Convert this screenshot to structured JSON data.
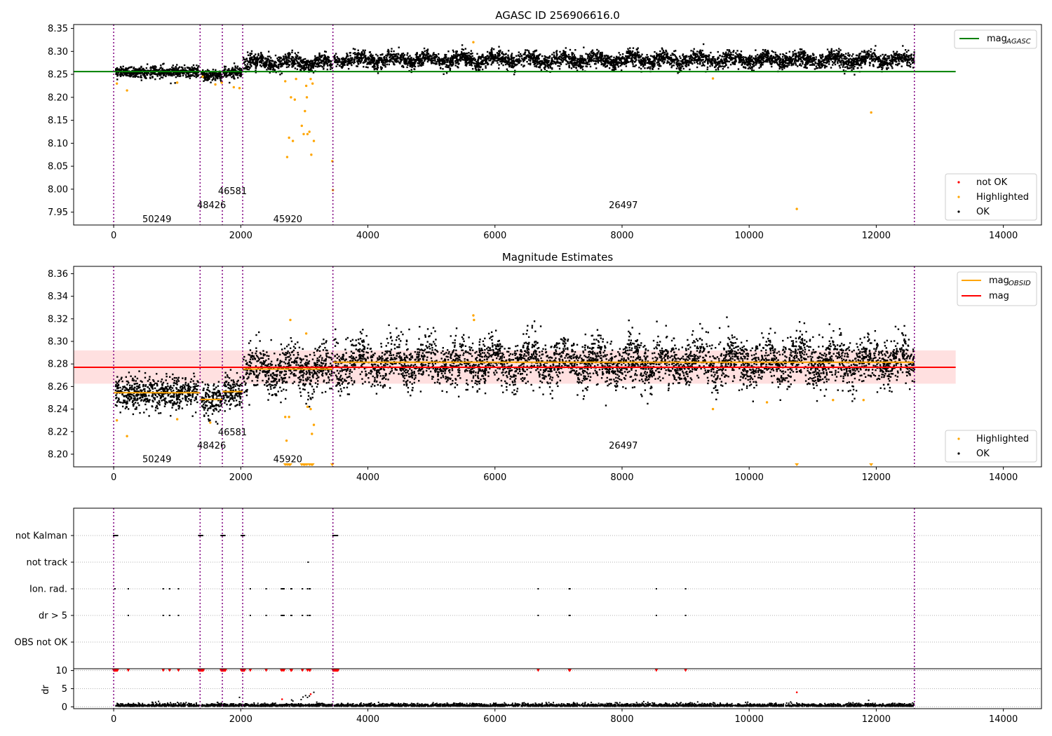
{
  "figure_title": "AGASC ID 256906616.0",
  "chart_data": [
    {
      "type": "scatter",
      "title": "AGASC ID 256906616.0",
      "xlabel": "",
      "ylabel": "",
      "xlim": [
        -630,
        14600
      ],
      "ylim": [
        7.922,
        8.3585
      ],
      "xticks": [
        0,
        2000,
        4000,
        6000,
        8000,
        10000,
        12000,
        14000
      ],
      "yticks": [
        7.95,
        8.0,
        8.05,
        8.1,
        8.15,
        8.2,
        8.25,
        8.3,
        8.35
      ],
      "ytick_decimals": 2,
      "obsid_boundaries": [
        0,
        1360,
        1710,
        2030,
        3450,
        12600
      ],
      "obsid_labels": [
        {
          "text": "50249",
          "x": 680,
          "y": 7.936
        },
        {
          "text": "48426",
          "x": 1540,
          "y": 7.966
        },
        {
          "text": "46581",
          "x": 1870,
          "y": 7.997
        },
        {
          "text": "45920",
          "x": 2740,
          "y": 7.936
        },
        {
          "text": "26497",
          "x": 8020,
          "y": 7.966
        }
      ],
      "segments": [
        {
          "x0": 30,
          "x1": 1340,
          "mean": 8.2555,
          "spread": 0.006
        },
        {
          "x0": 1380,
          "x1": 1700,
          "mean": 8.2475,
          "spread": 0.006
        },
        {
          "x0": 1720,
          "x1": 2020,
          "mean": 8.255,
          "spread": 0.006
        },
        {
          "x0": 2040,
          "x1": 3440,
          "mean": 8.2755,
          "spread": 0.008
        },
        {
          "x0": 3470,
          "x1": 12600,
          "mean": 8.2815,
          "spread": 0.008
        }
      ],
      "agasc_mag": {
        "value": 8.256,
        "x0": -630,
        "x1": 13250,
        "color": "#008000"
      },
      "series": [
        {
          "name": "not OK",
          "color": "#ff0000",
          "points": []
        },
        {
          "name": "Highlighted",
          "color": "#ffa500",
          "points": [
            [
              50,
              8.23
            ],
            [
              210,
              8.215
            ],
            [
              1000,
              8.232
            ],
            [
              1400,
              8.245
            ],
            [
              1600,
              8.228
            ],
            [
              1700,
              8.232
            ],
            [
              1890,
              8.222
            ],
            [
              1980,
              8.22
            ],
            [
              2700,
              8.235
            ],
            [
              2730,
              8.07
            ],
            [
              2760,
              8.112
            ],
            [
              2790,
              8.2
            ],
            [
              2820,
              8.105
            ],
            [
              2850,
              8.195
            ],
            [
              2870,
              8.24
            ],
            [
              2960,
              8.138
            ],
            [
              2990,
              8.12
            ],
            [
              3010,
              8.17
            ],
            [
              3030,
              8.225
            ],
            [
              3040,
              8.2
            ],
            [
              3050,
              8.12
            ],
            [
              3080,
              8.125
            ],
            [
              3100,
              8.24
            ],
            [
              3110,
              8.075
            ],
            [
              3130,
              8.23
            ],
            [
              3150,
              8.105
            ],
            [
              3440,
              8.061
            ],
            [
              3450,
              7.998
            ],
            [
              5660,
              8.32
            ],
            [
              10750,
              7.957
            ],
            [
              11920,
              8.167
            ],
            [
              9430,
              8.241
            ]
          ]
        },
        {
          "name": "OK",
          "color": "#000000",
          "points": []
        }
      ],
      "legends": [
        {
          "position": "top-right",
          "items": [
            {
              "label": "mag",
              "sub": "AGASC",
              "kind": "line",
              "color": "#008000"
            }
          ]
        },
        {
          "position": "bottom-right",
          "items": [
            {
              "label": "not OK",
              "kind": "dot",
              "color": "#ff0000"
            },
            {
              "label": "Highlighted",
              "kind": "dot",
              "color": "#ffa500"
            },
            {
              "label": "OK",
              "kind": "dot",
              "color": "#000000"
            }
          ]
        }
      ]
    },
    {
      "type": "scatter",
      "title": "Magnitude Estimates",
      "xlabel": "",
      "ylabel": "",
      "xlim": [
        -630,
        14600
      ],
      "ylim": [
        8.1888,
        8.3665
      ],
      "xticks": [
        0,
        2000,
        4000,
        6000,
        8000,
        10000,
        12000,
        14000
      ],
      "yticks": [
        8.2,
        8.22,
        8.24,
        8.26,
        8.28,
        8.3,
        8.32,
        8.34,
        8.36
      ],
      "ytick_decimals": 2,
      "obsid_boundaries": [
        0,
        1360,
        1710,
        2030,
        3450,
        12600
      ],
      "obsid_labels": [
        {
          "text": "50249",
          "x": 680,
          "y": 8.196
        },
        {
          "text": "48426",
          "x": 1540,
          "y": 8.208
        },
        {
          "text": "46581",
          "x": 1870,
          "y": 8.22
        },
        {
          "text": "45920",
          "x": 2740,
          "y": 8.196
        },
        {
          "text": "26497",
          "x": 8020,
          "y": 8.208
        }
      ],
      "segments": [
        {
          "x0": 30,
          "x1": 1340,
          "mean": 8.2545,
          "spread": 0.007
        },
        {
          "x0": 1380,
          "x1": 1700,
          "mean": 8.2485,
          "spread": 0.007
        },
        {
          "x0": 1720,
          "x1": 2020,
          "mean": 8.2555,
          "spread": 0.007
        },
        {
          "x0": 2040,
          "x1": 3440,
          "mean": 8.2755,
          "spread": 0.01
        },
        {
          "x0": 3470,
          "x1": 12600,
          "mean": 8.2815,
          "spread": 0.01
        }
      ],
      "obsid_mags": [
        {
          "x0": 0,
          "x1": 1360,
          "mag": 8.2545
        },
        {
          "x0": 1360,
          "x1": 1710,
          "mag": 8.2485
        },
        {
          "x0": 1710,
          "x1": 2030,
          "mag": 8.2555
        },
        {
          "x0": 2030,
          "x1": 3450,
          "mag": 8.2755
        },
        {
          "x0": 3450,
          "x1": 12600,
          "mag": 8.2815
        }
      ],
      "mag": {
        "value": 8.277,
        "band": [
          8.2625,
          8.292
        ],
        "x0": -630,
        "x1": 13250,
        "color": "#ff0000"
      },
      "series": [
        {
          "name": "Highlighted",
          "color": "#ffa500",
          "points": [
            [
              50,
              8.23
            ],
            [
              210,
              8.216
            ],
            [
              1000,
              8.231
            ],
            [
              1520,
              8.228
            ],
            [
              2700,
              8.233
            ],
            [
              2720,
              8.212
            ],
            [
              2760,
              8.233
            ],
            [
              2780,
              8.319
            ],
            [
              3030,
              8.307
            ],
            [
              3050,
              8.242
            ],
            [
              3100,
              8.24
            ],
            [
              3120,
              8.218
            ],
            [
              3150,
              8.226
            ],
            [
              5660,
              8.323
            ],
            [
              5670,
              8.319
            ],
            [
              9430,
              8.24
            ],
            [
              10280,
              8.246
            ],
            [
              11320,
              8.248
            ],
            [
              11800,
              8.248
            ]
          ]
        },
        {
          "name": "OK",
          "color": "#000000",
          "points": []
        }
      ],
      "below_range": [
        2700,
        2730,
        2760,
        2780,
        2960,
        2990,
        3010,
        3040,
        3080,
        3110,
        3130,
        3440,
        10750,
        11920
      ],
      "legends": [
        {
          "position": "top-right",
          "items": [
            {
              "label": "mag",
              "sub": "OBSID",
              "kind": "line",
              "color": "#ffa500"
            },
            {
              "label": "mag",
              "kind": "line",
              "color": "#ff0000"
            }
          ]
        },
        {
          "position": "bottom-right",
          "items": [
            {
              "label": "Highlighted",
              "kind": "dot",
              "color": "#ffa500"
            },
            {
              "label": "OK",
              "kind": "dot",
              "color": "#000000"
            }
          ]
        }
      ]
    },
    {
      "type": "scatter",
      "title": "",
      "xlim": [
        -630,
        14600
      ],
      "xticks": [
        0,
        2000,
        4000,
        6000,
        8000,
        10000,
        12000,
        14000
      ],
      "obsid_boundaries": [
        0,
        1360,
        1710,
        2030,
        3450,
        12600
      ],
      "flag_rows": [
        "not Kalman",
        "not track",
        "Ion. rad.",
        "dr > 5",
        "OBS not OK"
      ],
      "flags": {
        "not Kalman": [
          [
            0,
            60
          ],
          [
            1340,
            1410
          ],
          [
            1690,
            1760
          ],
          [
            2010,
            2060
          ],
          [
            3450,
            3530
          ]
        ],
        "not track": [
          3060
        ],
        "Ion. rad.": [
          20,
          230,
          780,
          880,
          1020,
          2150,
          2400,
          2640,
          2660,
          2680,
          2790,
          2800,
          2970,
          3050,
          3080,
          3090,
          6680,
          7170,
          7180,
          8540,
          9000
        ],
        "dr > 5": [
          230,
          780,
          880,
          1020,
          2150,
          2400,
          2640,
          2660,
          2680,
          2790,
          2800,
          2970,
          3050,
          3080,
          3090,
          6680,
          7170,
          7180,
          8540,
          9000
        ],
        "OBS not OK": []
      },
      "dr_ylabel": "dr",
      "dr_ylim": [
        -0.5,
        10.5
      ],
      "dr_yticks": [
        0,
        5,
        10
      ],
      "dr_clip_value": 10,
      "dr_outliers": [
        [
          2800,
          1.9
        ],
        [
          2820,
          1.6
        ],
        [
          2950,
          2.0
        ],
        [
          2980,
          2.7
        ],
        [
          3020,
          3.1
        ],
        [
          3050,
          2.6
        ],
        [
          3080,
          3.0
        ],
        [
          3150,
          4.0
        ],
        [
          11880,
          1.8
        ],
        [
          1980,
          2.6
        ]
      ],
      "dr_red": [
        [
          2650,
          2.1
        ],
        [
          3100,
          3.5
        ],
        [
          10750,
          4.0
        ]
      ]
    }
  ],
  "colors": {
    "ok": "#000000",
    "highlighted": "#ffa500",
    "not_ok": "#ff0000",
    "agasc": "#008000",
    "mag": "#ff0000",
    "mag_obsid": "#ffa500",
    "band": "#ffcccc",
    "boundary": "#800080",
    "grid": "#b0b0b0"
  }
}
